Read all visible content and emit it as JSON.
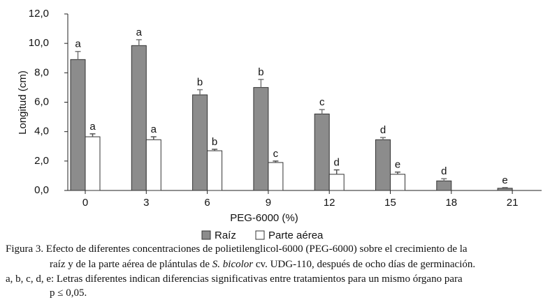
{
  "chart_data": {
    "type": "bar",
    "y_label": "Longitud (cm)",
    "x_label": "PEG-6000 (%)",
    "categories": [
      "0",
      "3",
      "6",
      "9",
      "12",
      "15",
      "18",
      "21"
    ],
    "ylim": [
      0,
      12
    ],
    "yticks": [
      {
        "value": 0,
        "label": "0,0"
      },
      {
        "value": 2,
        "label": "2,0"
      },
      {
        "value": 4,
        "label": "4,0"
      },
      {
        "value": 6,
        "label": "6,0"
      },
      {
        "value": 8,
        "label": "8,0"
      },
      {
        "value": 10,
        "label": "10,0"
      },
      {
        "value": 12,
        "label": "12,0"
      }
    ],
    "series": [
      {
        "name": "Raíz",
        "color": "#8c8c8c",
        "values": [
          8.9,
          9.85,
          6.5,
          7.0,
          5.2,
          3.45,
          0.65,
          0.15
        ],
        "errors": [
          0.55,
          0.4,
          0.35,
          0.55,
          0.3,
          0.15,
          0.15,
          0.05
        ],
        "letters": [
          "a",
          "a",
          "b",
          "b",
          "c",
          "d",
          "d",
          "e"
        ]
      },
      {
        "name": "Parte aérea",
        "color": "#ffffff",
        "values": [
          3.65,
          3.45,
          2.7,
          1.9,
          1.1,
          1.1,
          null,
          null
        ],
        "errors": [
          0.2,
          0.2,
          0.1,
          0.1,
          0.3,
          0.15,
          null,
          null
        ],
        "letters": [
          "a",
          "a",
          "b",
          "c",
          "d",
          "e",
          null,
          null
        ]
      }
    ]
  },
  "caption": {
    "line1": "Figura 3. Efecto de diferentes concentraciones de polietilenglicol-6000 (PEG-6000) sobre el crecimiento de la",
    "line2_before": "raíz y de la parte aérea de plántulas de ",
    "line2_species": "S. bicolor",
    "line2_after": " cv. UDG-110, después de ocho días de germinación.",
    "line3": "a, b, c, d, e: Letras diferentes indican diferencias significativas entre tratamientos para un mismo órgano para",
    "line4": "p ≤ 0,05."
  }
}
